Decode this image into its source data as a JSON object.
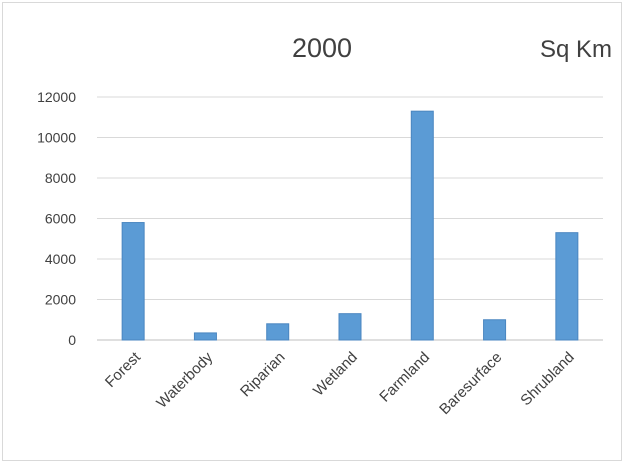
{
  "chart_data": {
    "type": "bar",
    "title": "2000",
    "unit_label": "Sq Km",
    "xlabel": "",
    "ylabel": "",
    "categories": [
      "Forest",
      "Waterbody",
      "Riparian",
      "Wetland",
      "Farmland",
      "Baresurface",
      "Shrubland"
    ],
    "values": [
      5800,
      350,
      800,
      1300,
      11300,
      1000,
      5300
    ],
    "ylim": [
      0,
      12000
    ],
    "yticks": [
      0,
      2000,
      4000,
      6000,
      8000,
      10000,
      12000
    ],
    "grid": true,
    "legend": "none",
    "bar_color": "#5b9bd5",
    "bar_edge_color": "#4a86c0"
  }
}
